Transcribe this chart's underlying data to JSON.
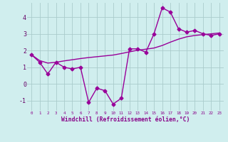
{
  "xlabel": "Windchill (Refroidissement éolien,°C)",
  "bg_color": "#d0eeee",
  "line_color": "#990099",
  "grid_color": "#aacccc",
  "hours": [
    0,
    1,
    2,
    3,
    4,
    5,
    6,
    7,
    8,
    9,
    10,
    11,
    12,
    13,
    14,
    15,
    16,
    17,
    18,
    19,
    20,
    21,
    22,
    23
  ],
  "zigzag_y": [
    1.75,
    1.3,
    0.6,
    1.3,
    1.0,
    0.9,
    1.0,
    -1.1,
    -0.25,
    -0.4,
    -1.2,
    -0.85,
    2.1,
    2.1,
    1.9,
    3.0,
    4.55,
    4.3,
    3.3,
    3.1,
    3.2,
    3.0,
    2.9,
    3.0
  ],
  "trend_y": [
    1.75,
    1.4,
    1.25,
    1.3,
    1.38,
    1.45,
    1.52,
    1.58,
    1.63,
    1.68,
    1.73,
    1.82,
    1.92,
    2.02,
    2.08,
    2.15,
    2.3,
    2.5,
    2.68,
    2.82,
    2.9,
    2.95,
    3.0,
    3.05
  ],
  "ylim": [
    -1.6,
    4.85
  ],
  "yticks": [
    -1,
    0,
    1,
    2,
    3,
    4
  ],
  "xlim": [
    -0.5,
    23.5
  ],
  "xlabel_color": "#880088",
  "xtick_color": "#880088",
  "ytick_color": "#660066",
  "marker_size": 2.5,
  "linewidth": 1.0
}
